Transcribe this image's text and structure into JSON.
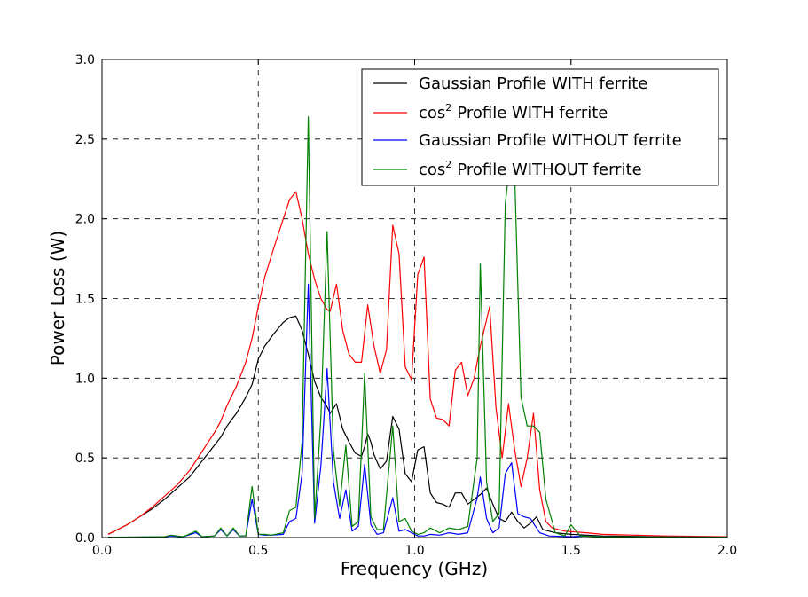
{
  "chart_data": {
    "type": "line",
    "title": "",
    "xlabel": "Frequency (GHz)",
    "ylabel": "Power Loss (W)",
    "xlim": [
      0.0,
      2.0
    ],
    "ylim": [
      0.0,
      3.0
    ],
    "xticks": [
      0.0,
      0.5,
      1.0,
      1.5,
      2.0
    ],
    "xtick_labels": [
      "0.0",
      "0.5",
      "1.0",
      "1.5",
      "2.0"
    ],
    "yticks": [
      0.0,
      0.5,
      1.0,
      1.5,
      2.0,
      2.5,
      3.0
    ],
    "ytick_labels": [
      "0.0",
      "0.5",
      "1.0",
      "1.5",
      "2.0",
      "2.5",
      "3.0"
    ],
    "grid": true,
    "legend_position": "top-right",
    "series": [
      {
        "name": "Gaussian Profile WITH ferrite",
        "label_main": "Gaussian Profile WITH ferrite",
        "label_sup": "",
        "color": "#000000",
        "points": [
          [
            0.02,
            0.02
          ],
          [
            0.08,
            0.08
          ],
          [
            0.12,
            0.13
          ],
          [
            0.16,
            0.18
          ],
          [
            0.2,
            0.24
          ],
          [
            0.24,
            0.31
          ],
          [
            0.28,
            0.38
          ],
          [
            0.32,
            0.48
          ],
          [
            0.36,
            0.58
          ],
          [
            0.38,
            0.63
          ],
          [
            0.4,
            0.7
          ],
          [
            0.43,
            0.78
          ],
          [
            0.46,
            0.88
          ],
          [
            0.48,
            0.96
          ],
          [
            0.5,
            1.12
          ],
          [
            0.52,
            1.2
          ],
          [
            0.55,
            1.28
          ],
          [
            0.58,
            1.35
          ],
          [
            0.6,
            1.38
          ],
          [
            0.62,
            1.39
          ],
          [
            0.64,
            1.3
          ],
          [
            0.66,
            1.15
          ],
          [
            0.68,
            0.98
          ],
          [
            0.7,
            0.88
          ],
          [
            0.72,
            0.82
          ],
          [
            0.73,
            0.78
          ],
          [
            0.75,
            0.84
          ],
          [
            0.77,
            0.68
          ],
          [
            0.79,
            0.6
          ],
          [
            0.81,
            0.53
          ],
          [
            0.83,
            0.51
          ],
          [
            0.84,
            0.57
          ],
          [
            0.85,
            0.65
          ],
          [
            0.86,
            0.6
          ],
          [
            0.87,
            0.52
          ],
          [
            0.89,
            0.43
          ],
          [
            0.91,
            0.48
          ],
          [
            0.93,
            0.76
          ],
          [
            0.95,
            0.68
          ],
          [
            0.97,
            0.4
          ],
          [
            0.99,
            0.35
          ],
          [
            1.01,
            0.55
          ],
          [
            1.03,
            0.57
          ],
          [
            1.05,
            0.28
          ],
          [
            1.07,
            0.22
          ],
          [
            1.09,
            0.21
          ],
          [
            1.11,
            0.19
          ],
          [
            1.13,
            0.28
          ],
          [
            1.15,
            0.28
          ],
          [
            1.17,
            0.21
          ],
          [
            1.19,
            0.24
          ],
          [
            1.21,
            0.27
          ],
          [
            1.23,
            0.31
          ],
          [
            1.25,
            0.21
          ],
          [
            1.27,
            0.12
          ],
          [
            1.29,
            0.1
          ],
          [
            1.31,
            0.16
          ],
          [
            1.33,
            0.1
          ],
          [
            1.35,
            0.06
          ],
          [
            1.37,
            0.09
          ],
          [
            1.39,
            0.13
          ],
          [
            1.41,
            0.05
          ],
          [
            1.43,
            0.04
          ],
          [
            1.45,
            0.03
          ],
          [
            1.5,
            0.02
          ],
          [
            1.6,
            0.01
          ],
          [
            1.8,
            0.005
          ],
          [
            2.0,
            0.002
          ]
        ]
      },
      {
        "name": "cos2 Profile WITH ferrite",
        "label_main": "cos",
        "label_sup": "2",
        "label_rest": "Profile WITH ferrite",
        "color": "#ff0000",
        "points": [
          [
            0.02,
            0.02
          ],
          [
            0.08,
            0.08
          ],
          [
            0.12,
            0.13
          ],
          [
            0.16,
            0.19
          ],
          [
            0.2,
            0.26
          ],
          [
            0.24,
            0.33
          ],
          [
            0.28,
            0.42
          ],
          [
            0.32,
            0.54
          ],
          [
            0.36,
            0.66
          ],
          [
            0.38,
            0.73
          ],
          [
            0.4,
            0.83
          ],
          [
            0.43,
            0.95
          ],
          [
            0.46,
            1.1
          ],
          [
            0.48,
            1.25
          ],
          [
            0.5,
            1.45
          ],
          [
            0.52,
            1.63
          ],
          [
            0.55,
            1.82
          ],
          [
            0.58,
            2.0
          ],
          [
            0.6,
            2.12
          ],
          [
            0.62,
            2.17
          ],
          [
            0.64,
            2.0
          ],
          [
            0.66,
            1.78
          ],
          [
            0.68,
            1.62
          ],
          [
            0.7,
            1.5
          ],
          [
            0.72,
            1.43
          ],
          [
            0.73,
            1.42
          ],
          [
            0.75,
            1.59
          ],
          [
            0.77,
            1.3
          ],
          [
            0.79,
            1.15
          ],
          [
            0.81,
            1.1
          ],
          [
            0.83,
            1.1
          ],
          [
            0.85,
            1.46
          ],
          [
            0.87,
            1.2
          ],
          [
            0.89,
            1.03
          ],
          [
            0.91,
            1.18
          ],
          [
            0.93,
            1.96
          ],
          [
            0.95,
            1.78
          ],
          [
            0.97,
            1.07
          ],
          [
            0.99,
            0.99
          ],
          [
            1.01,
            1.65
          ],
          [
            1.03,
            1.76
          ],
          [
            1.05,
            0.87
          ],
          [
            1.07,
            0.75
          ],
          [
            1.09,
            0.74
          ],
          [
            1.11,
            0.7
          ],
          [
            1.13,
            1.05
          ],
          [
            1.15,
            1.1
          ],
          [
            1.17,
            0.89
          ],
          [
            1.19,
            1.0
          ],
          [
            1.21,
            1.2
          ],
          [
            1.24,
            1.45
          ],
          [
            1.26,
            0.82
          ],
          [
            1.28,
            0.5
          ],
          [
            1.3,
            0.84
          ],
          [
            1.32,
            0.55
          ],
          [
            1.34,
            0.32
          ],
          [
            1.36,
            0.5
          ],
          [
            1.38,
            0.78
          ],
          [
            1.4,
            0.3
          ],
          [
            1.42,
            0.1
          ],
          [
            1.44,
            0.06
          ],
          [
            1.48,
            0.04
          ],
          [
            1.55,
            0.03
          ],
          [
            1.6,
            0.02
          ],
          [
            1.8,
            0.01
          ],
          [
            2.0,
            0.005
          ]
        ]
      },
      {
        "name": "Gaussian Profile WITHOUT ferrite",
        "label_main": "Gaussian Profile WITHOUT ferrite",
        "label_sup": "",
        "color": "#0000ff",
        "points": [
          [
            0.02,
            0.002
          ],
          [
            0.1,
            0.003
          ],
          [
            0.2,
            0.005
          ],
          [
            0.22,
            0.01
          ],
          [
            0.26,
            0.005
          ],
          [
            0.3,
            0.03
          ],
          [
            0.32,
            0.005
          ],
          [
            0.36,
            0.01
          ],
          [
            0.38,
            0.05
          ],
          [
            0.4,
            0.01
          ],
          [
            0.42,
            0.05
          ],
          [
            0.44,
            0.01
          ],
          [
            0.46,
            0.01
          ],
          [
            0.48,
            0.24
          ],
          [
            0.5,
            0.02
          ],
          [
            0.52,
            0.015
          ],
          [
            0.54,
            0.015
          ],
          [
            0.58,
            0.02
          ],
          [
            0.6,
            0.1
          ],
          [
            0.62,
            0.12
          ],
          [
            0.64,
            0.4
          ],
          [
            0.66,
            1.59
          ],
          [
            0.68,
            0.09
          ],
          [
            0.7,
            0.45
          ],
          [
            0.72,
            1.06
          ],
          [
            0.74,
            0.35
          ],
          [
            0.76,
            0.12
          ],
          [
            0.78,
            0.3
          ],
          [
            0.8,
            0.04
          ],
          [
            0.82,
            0.07
          ],
          [
            0.84,
            0.46
          ],
          [
            0.86,
            0.08
          ],
          [
            0.88,
            0.02
          ],
          [
            0.9,
            0.03
          ],
          [
            0.93,
            0.25
          ],
          [
            0.95,
            0.04
          ],
          [
            0.97,
            0.05
          ],
          [
            0.99,
            0.03
          ],
          [
            1.01,
            0.01
          ],
          [
            1.03,
            0.01
          ],
          [
            1.05,
            0.02
          ],
          [
            1.08,
            0.015
          ],
          [
            1.11,
            0.03
          ],
          [
            1.14,
            0.02
          ],
          [
            1.17,
            0.03
          ],
          [
            1.2,
            0.25
          ],
          [
            1.21,
            0.38
          ],
          [
            1.23,
            0.12
          ],
          [
            1.25,
            0.03
          ],
          [
            1.27,
            0.06
          ],
          [
            1.29,
            0.4
          ],
          [
            1.31,
            0.47
          ],
          [
            1.33,
            0.15
          ],
          [
            1.35,
            0.13
          ],
          [
            1.37,
            0.12
          ],
          [
            1.4,
            0.03
          ],
          [
            1.43,
            0.01
          ],
          [
            1.5,
            0.005
          ],
          [
            1.55,
            0.01
          ],
          [
            1.6,
            0.005
          ],
          [
            2.0,
            0.002
          ]
        ]
      },
      {
        "name": "cos2 Profile WITHOUT ferrite",
        "label_main": "cos",
        "label_sup": "2",
        "label_rest": "Profile WITHOUT ferrite",
        "color": "#008000",
        "points": [
          [
            0.02,
            0.002
          ],
          [
            0.1,
            0.003
          ],
          [
            0.2,
            0.005
          ],
          [
            0.22,
            0.015
          ],
          [
            0.26,
            0.005
          ],
          [
            0.3,
            0.04
          ],
          [
            0.32,
            0.005
          ],
          [
            0.36,
            0.01
          ],
          [
            0.38,
            0.06
          ],
          [
            0.4,
            0.01
          ],
          [
            0.42,
            0.06
          ],
          [
            0.44,
            0.01
          ],
          [
            0.46,
            0.01
          ],
          [
            0.48,
            0.32
          ],
          [
            0.5,
            0.02
          ],
          [
            0.52,
            0.02
          ],
          [
            0.54,
            0.015
          ],
          [
            0.58,
            0.03
          ],
          [
            0.6,
            0.17
          ],
          [
            0.62,
            0.19
          ],
          [
            0.64,
            0.6
          ],
          [
            0.66,
            2.64
          ],
          [
            0.68,
            0.12
          ],
          [
            0.7,
            0.75
          ],
          [
            0.72,
            1.92
          ],
          [
            0.74,
            0.55
          ],
          [
            0.76,
            0.2
          ],
          [
            0.78,
            0.58
          ],
          [
            0.8,
            0.07
          ],
          [
            0.82,
            0.1
          ],
          [
            0.84,
            1.03
          ],
          [
            0.86,
            0.13
          ],
          [
            0.88,
            0.05
          ],
          [
            0.9,
            0.05
          ],
          [
            0.93,
            0.7
          ],
          [
            0.95,
            0.1
          ],
          [
            0.97,
            0.12
          ],
          [
            0.99,
            0.04
          ],
          [
            1.01,
            0.02
          ],
          [
            1.03,
            0.03
          ],
          [
            1.05,
            0.06
          ],
          [
            1.08,
            0.03
          ],
          [
            1.11,
            0.06
          ],
          [
            1.14,
            0.05
          ],
          [
            1.17,
            0.07
          ],
          [
            1.2,
            0.5
          ],
          [
            1.21,
            1.72
          ],
          [
            1.23,
            0.35
          ],
          [
            1.25,
            0.1
          ],
          [
            1.27,
            0.15
          ],
          [
            1.29,
            2.1
          ],
          [
            1.3,
            2.27
          ],
          [
            1.32,
            2.27
          ],
          [
            1.34,
            0.88
          ],
          [
            1.36,
            0.7
          ],
          [
            1.38,
            0.7
          ],
          [
            1.4,
            0.66
          ],
          [
            1.42,
            0.24
          ],
          [
            1.45,
            0.03
          ],
          [
            1.48,
            0.01
          ],
          [
            1.5,
            0.08
          ],
          [
            1.53,
            0.01
          ],
          [
            1.6,
            0.005
          ],
          [
            2.0,
            0.002
          ]
        ]
      }
    ]
  }
}
